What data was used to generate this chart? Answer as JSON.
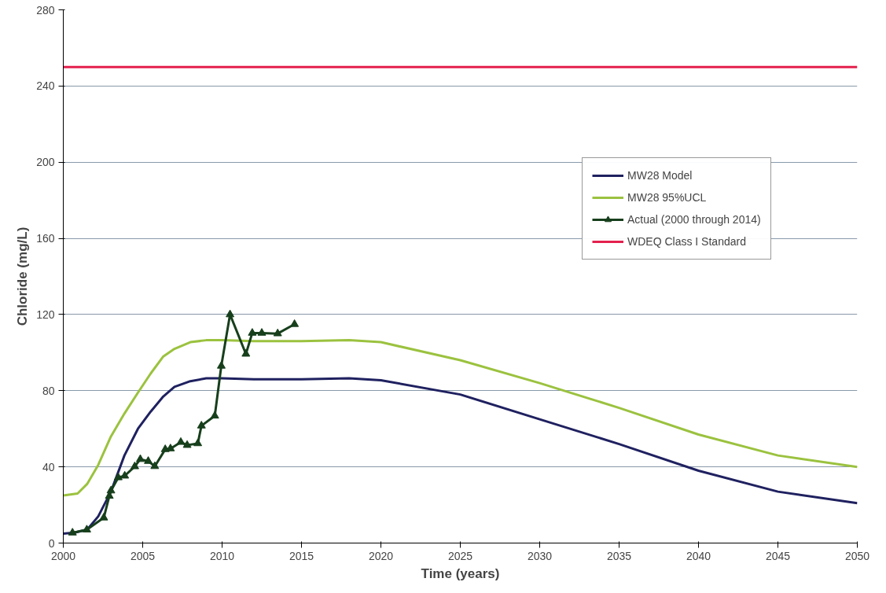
{
  "chart_data": {
    "type": "line",
    "xlabel": "Time (years)",
    "ylabel": "Chloride (mg/L)",
    "xlim": [
      2000,
      2050
    ],
    "xticks": [
      2000,
      2005,
      2010,
      2015,
      2020,
      2025,
      2030,
      2035,
      2040,
      2045,
      2050
    ],
    "ylim": [
      0,
      280
    ],
    "yticks": [
      0,
      40,
      80,
      120,
      160,
      200,
      240,
      280
    ],
    "grid": "y",
    "legend": "right",
    "series": [
      {
        "name": "MW28 Model",
        "color": "#1f2160",
        "marker": "none",
        "x": [
          2000,
          2000.7,
          2001.5,
          2002.2,
          2003,
          2003.85,
          2004.7,
          2005.5,
          2006.3,
          2007,
          2008,
          2009,
          2010,
          2012,
          2015,
          2018,
          2020,
          2025,
          2030,
          2035,
          2040,
          2045,
          2050
        ],
        "values": [
          5,
          5.5,
          7,
          14,
          27,
          46,
          60,
          69,
          77,
          82,
          85,
          86.5,
          86.5,
          86,
          86,
          86.5,
          85.5,
          78,
          65,
          52,
          38,
          27,
          21
        ]
      },
      {
        "name": "MW28 95%UCL",
        "color": "#9bc23f",
        "marker": "none",
        "x": [
          2000,
          2000.9,
          2001.5,
          2002.2,
          2003,
          2003.85,
          2004.7,
          2005.5,
          2006.3,
          2007,
          2008,
          2009,
          2010,
          2012,
          2015,
          2018,
          2020,
          2025,
          2030,
          2035,
          2040,
          2045,
          2050
        ],
        "values": [
          25,
          26,
          31,
          41,
          56,
          68,
          79,
          89,
          98,
          102,
          105.5,
          106.5,
          106.5,
          106,
          106,
          106.5,
          105.5,
          96,
          84,
          71,
          57,
          46,
          40
        ]
      },
      {
        "name": "Actual (2000 through 2014)",
        "color": "#173f1c",
        "marker": "triangle",
        "x": [
          2000.58,
          2001.48,
          2002.55,
          2002.9,
          2003.0,
          2003.46,
          2003.87,
          2004.5,
          2004.85,
          2005.35,
          2005.76,
          2006.42,
          2006.75,
          2007.4,
          2007.8,
          2008.47,
          2008.7,
          2009.54,
          2009.95,
          2010.5,
          2011.5,
          2011.9,
          2012.5,
          2013.5,
          2014.56
        ],
        "values": [
          5.4,
          7,
          13.3,
          24.7,
          27.5,
          34.4,
          35.3,
          40.2,
          44,
          43,
          40.3,
          49.2,
          49.6,
          53,
          51.4,
          52.3,
          61.6,
          66.8,
          93,
          120,
          99.3,
          110.3,
          110.3,
          110,
          114.9
        ]
      },
      {
        "name": "WDEQ Class I Standard",
        "color": "#e3204d",
        "marker": "none",
        "x": [
          2000,
          2050
        ],
        "values": [
          250,
          250
        ]
      }
    ]
  }
}
